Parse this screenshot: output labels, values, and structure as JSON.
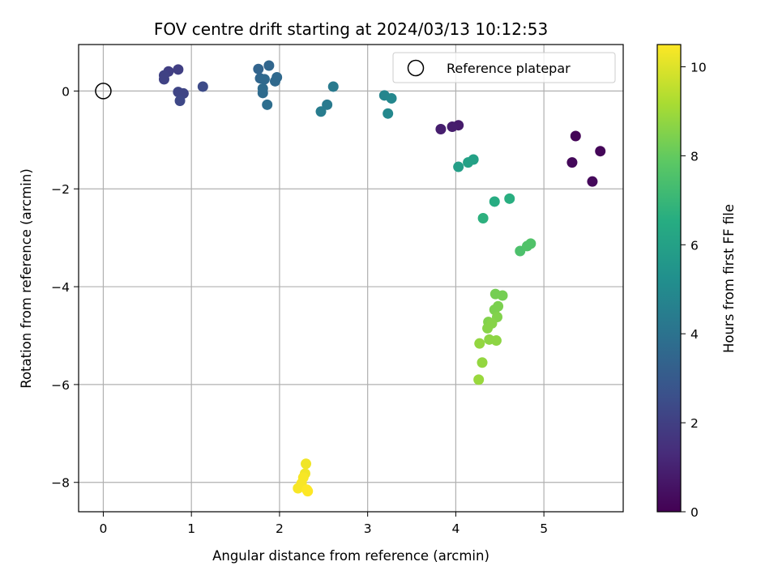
{
  "chart_data": {
    "type": "scatter",
    "title": "FOV centre drift starting at 2024/03/13 10:12:53",
    "xlabel": "Angular distance from reference (arcmin)",
    "ylabel": "Rotation from reference (arcmin)",
    "xlim": [
      -0.28,
      5.9
    ],
    "ylim": [
      -8.6,
      0.95
    ],
    "xticks": [
      0,
      1,
      2,
      3,
      4,
      5
    ],
    "yticks": [
      0,
      -2,
      -4,
      -6,
      -8
    ],
    "grid": true,
    "legend": {
      "placement": "top-right",
      "entries": [
        "Reference platepar"
      ]
    },
    "reference_point": {
      "x": 0,
      "y": 0
    },
    "colorbar": {
      "label": "Hours from first FF file",
      "range": [
        0,
        10.5
      ],
      "ticks": [
        0,
        2,
        4,
        6,
        8,
        10
      ],
      "colormap": "viridis"
    },
    "points": [
      {
        "x": 5.36,
        "y": -0.92,
        "c": 0.1
      },
      {
        "x": 5.64,
        "y": -1.23,
        "c": 0.15
      },
      {
        "x": 5.32,
        "y": -1.46,
        "c": 0.2
      },
      {
        "x": 5.55,
        "y": -1.85,
        "c": 0.25
      },
      {
        "x": 4.03,
        "y": -0.7,
        "c": 0.8
      },
      {
        "x": 3.96,
        "y": -0.73,
        "c": 0.85
      },
      {
        "x": 3.83,
        "y": -0.78,
        "c": 0.9
      },
      {
        "x": 0.85,
        "y": 0.44,
        "c": 2.0
      },
      {
        "x": 0.74,
        "y": 0.4,
        "c": 2.0
      },
      {
        "x": 0.69,
        "y": 0.32,
        "c": 2.1
      },
      {
        "x": 0.69,
        "y": 0.24,
        "c": 2.1
      },
      {
        "x": 0.85,
        "y": -0.02,
        "c": 2.2
      },
      {
        "x": 0.91,
        "y": -0.05,
        "c": 2.2
      },
      {
        "x": 0.87,
        "y": -0.2,
        "c": 2.3
      },
      {
        "x": 1.13,
        "y": 0.09,
        "c": 2.4
      },
      {
        "x": 1.76,
        "y": 0.45,
        "c": 3.4
      },
      {
        "x": 1.88,
        "y": 0.52,
        "c": 3.5
      },
      {
        "x": 1.78,
        "y": 0.26,
        "c": 3.5
      },
      {
        "x": 1.83,
        "y": 0.24,
        "c": 3.6
      },
      {
        "x": 1.97,
        "y": 0.28,
        "c": 3.6
      },
      {
        "x": 1.95,
        "y": 0.2,
        "c": 3.6
      },
      {
        "x": 1.81,
        "y": 0.05,
        "c": 3.7
      },
      {
        "x": 1.81,
        "y": -0.04,
        "c": 3.7
      },
      {
        "x": 1.86,
        "y": -0.28,
        "c": 3.8
      },
      {
        "x": 2.61,
        "y": 0.09,
        "c": 4.3
      },
      {
        "x": 2.54,
        "y": -0.28,
        "c": 4.3
      },
      {
        "x": 2.47,
        "y": -0.42,
        "c": 4.4
      },
      {
        "x": 3.19,
        "y": -0.09,
        "c": 4.8
      },
      {
        "x": 3.27,
        "y": -0.15,
        "c": 4.85
      },
      {
        "x": 3.23,
        "y": -0.46,
        "c": 4.9
      },
      {
        "x": 4.03,
        "y": -1.55,
        "c": 5.9
      },
      {
        "x": 4.14,
        "y": -1.46,
        "c": 6.0
      },
      {
        "x": 4.2,
        "y": -1.4,
        "c": 6.0
      },
      {
        "x": 4.44,
        "y": -2.26,
        "c": 6.5
      },
      {
        "x": 4.61,
        "y": -2.2,
        "c": 6.6
      },
      {
        "x": 4.31,
        "y": -2.6,
        "c": 6.7
      },
      {
        "x": 4.73,
        "y": -3.27,
        "c": 7.5
      },
      {
        "x": 4.81,
        "y": -3.17,
        "c": 7.6
      },
      {
        "x": 4.85,
        "y": -3.12,
        "c": 7.6
      },
      {
        "x": 4.45,
        "y": -4.15,
        "c": 8.3
      },
      {
        "x": 4.53,
        "y": -4.18,
        "c": 8.3
      },
      {
        "x": 4.48,
        "y": -4.4,
        "c": 8.4
      },
      {
        "x": 4.44,
        "y": -4.47,
        "c": 8.4
      },
      {
        "x": 4.47,
        "y": -4.62,
        "c": 8.5
      },
      {
        "x": 4.37,
        "y": -4.72,
        "c": 8.5
      },
      {
        "x": 4.41,
        "y": -4.75,
        "c": 8.6
      },
      {
        "x": 4.36,
        "y": -4.85,
        "c": 8.6
      },
      {
        "x": 4.38,
        "y": -5.08,
        "c": 8.7
      },
      {
        "x": 4.46,
        "y": -5.1,
        "c": 8.7
      },
      {
        "x": 4.27,
        "y": -5.16,
        "c": 8.8
      },
      {
        "x": 4.3,
        "y": -5.55,
        "c": 8.8
      },
      {
        "x": 4.26,
        "y": -5.9,
        "c": 8.9
      },
      {
        "x": 2.3,
        "y": -7.62,
        "c": 10.3
      },
      {
        "x": 2.29,
        "y": -7.82,
        "c": 10.3
      },
      {
        "x": 2.27,
        "y": -7.9,
        "c": 10.4
      },
      {
        "x": 2.25,
        "y": -8.02,
        "c": 10.4
      },
      {
        "x": 2.21,
        "y": -8.12,
        "c": 10.4
      },
      {
        "x": 2.31,
        "y": -8.15,
        "c": 10.5
      },
      {
        "x": 2.32,
        "y": -8.18,
        "c": 10.5
      }
    ]
  }
}
